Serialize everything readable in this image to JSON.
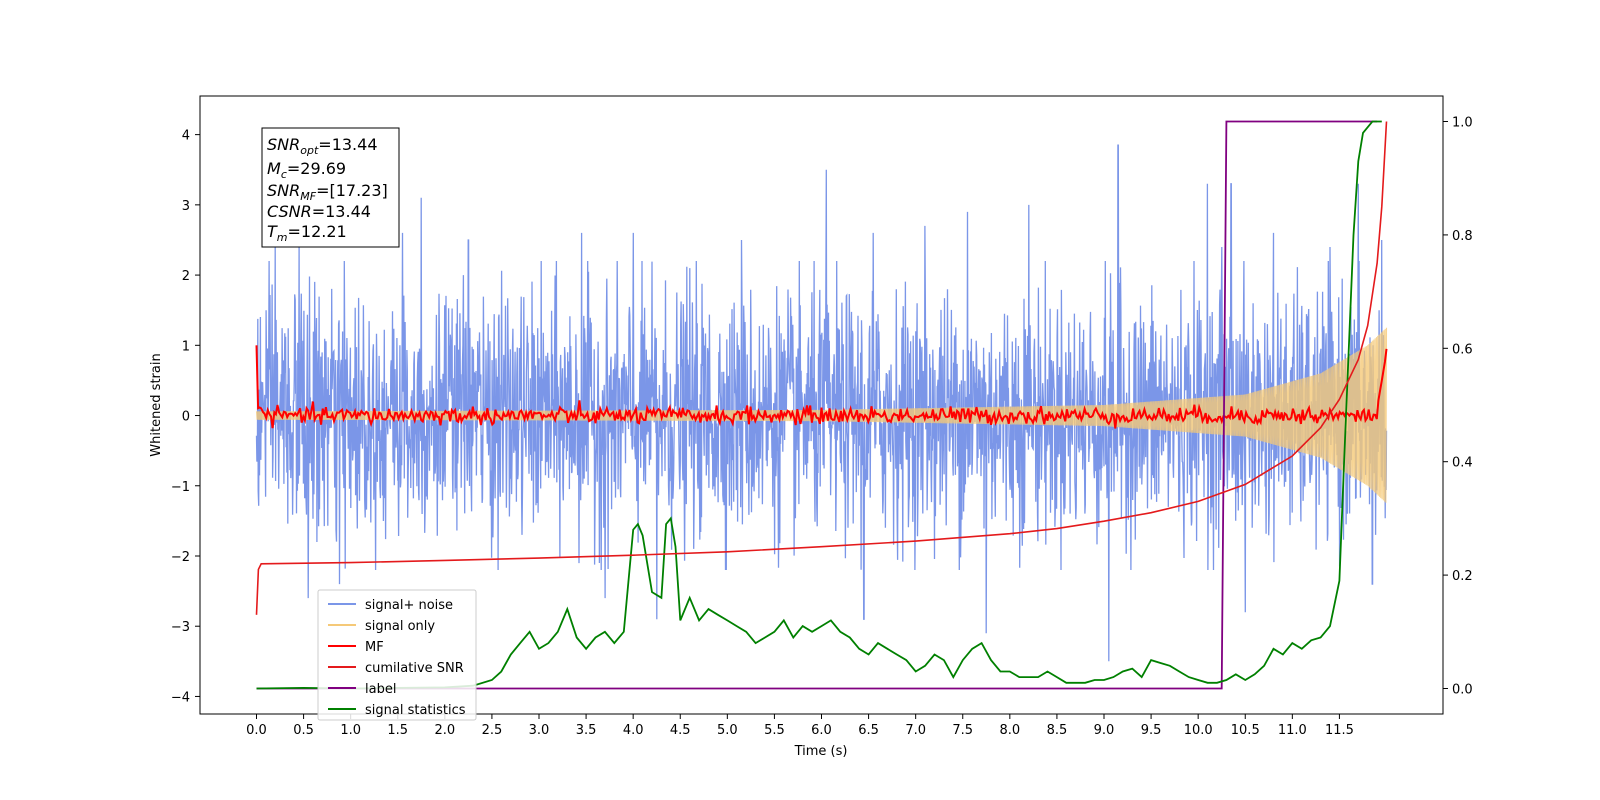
{
  "chart_data": {
    "type": "line",
    "xlabel": "Time (s)",
    "ylabel": "Whitened strain",
    "xlim": [
      -0.6,
      12.6
    ],
    "ylim": [
      -4.25,
      4.55
    ],
    "y2lim": [
      -0.045,
      1.045
    ],
    "xticks": [
      0.0,
      0.5,
      1.0,
      1.5,
      2.0,
      2.5,
      3.0,
      3.5,
      4.0,
      4.5,
      5.0,
      5.5,
      6.0,
      6.5,
      7.0,
      7.5,
      8.0,
      8.5,
      9.0,
      9.5,
      10.0,
      10.5,
      11.0,
      11.5
    ],
    "xtick_labels": [
      "0.0",
      "0.5",
      "1.0",
      "1.5",
      "2.0",
      "2.5",
      "3.0",
      "3.5",
      "4.0",
      "4.5",
      "5.0",
      "5.5",
      "6.0",
      "6.5",
      "7.0",
      "7.5",
      "8.0",
      "8.5",
      "9.0",
      "9.5",
      "10.0",
      "10.5",
      "11.0",
      "11.5"
    ],
    "yticks": [
      -4,
      -3,
      -2,
      -1,
      0,
      1,
      2,
      3,
      4
    ],
    "ytick_labels": [
      "−4",
      "−3",
      "−2",
      "−1",
      "0",
      "1",
      "2",
      "3",
      "4"
    ],
    "y2ticks": [
      0.0,
      0.2,
      0.4,
      0.6,
      0.8,
      1.0
    ],
    "y2tick_labels": [
      "0.0",
      "0.2",
      "0.4",
      "0.6",
      "0.8",
      "1.0"
    ],
    "grid": false,
    "legend_position": "lower-left",
    "annotation": {
      "snr_opt": "=13.44",
      "mc": "=29.69",
      "snr_mf": "=[17.23]",
      "csnr": "=13.44",
      "tm": "=12.21"
    },
    "series": [
      {
        "name": "signal+ noise",
        "axis": "left",
        "color": "#7b96e8",
        "t_start": 0.0,
        "t_end": 12.0,
        "noise_sigma": 0.85,
        "spikes": [
          {
            "x": 0.1,
            "y": 1.5
          },
          {
            "x": 0.2,
            "y": 2.4
          },
          {
            "x": 0.45,
            "y": 2.5
          },
          {
            "x": 0.55,
            "y": -2.6
          },
          {
            "x": 0.75,
            "y": 2.6
          },
          {
            "x": 0.88,
            "y": -2.4
          },
          {
            "x": 1.05,
            "y": 2.9
          },
          {
            "x": 1.55,
            "y": 2.6
          },
          {
            "x": 1.75,
            "y": 3.1
          },
          {
            "x": 1.95,
            "y": -2.3
          },
          {
            "x": 2.25,
            "y": 2.5
          },
          {
            "x": 3.45,
            "y": 2.6
          },
          {
            "x": 3.7,
            "y": -2.6
          },
          {
            "x": 4.0,
            "y": 2.6
          },
          {
            "x": 4.25,
            "y": -2.9
          },
          {
            "x": 4.6,
            "y": 2.1
          },
          {
            "x": 5.15,
            "y": 2.5
          },
          {
            "x": 6.05,
            "y": 3.5
          },
          {
            "x": 6.45,
            "y": -2.9
          },
          {
            "x": 6.55,
            "y": 2.6
          },
          {
            "x": 7.1,
            "y": 2.7
          },
          {
            "x": 7.55,
            "y": 2.9
          },
          {
            "x": 7.75,
            "y": -3.1
          },
          {
            "x": 8.2,
            "y": 3.0
          },
          {
            "x": 9.05,
            "y": -3.5
          },
          {
            "x": 9.15,
            "y": 3.85
          },
          {
            "x": 10.1,
            "y": 3.3
          },
          {
            "x": 10.25,
            "y": 2.4
          },
          {
            "x": 10.35,
            "y": 3.3
          },
          {
            "x": 10.5,
            "y": -2.8
          },
          {
            "x": 10.8,
            "y": 2.6
          },
          {
            "x": 11.4,
            "y": 2.4
          },
          {
            "x": 11.7,
            "y": 3.3
          },
          {
            "x": 11.85,
            "y": -2.4
          },
          {
            "x": 11.95,
            "y": 2.5
          }
        ]
      },
      {
        "name": "signal only",
        "axis": "left",
        "color": "#f5c978",
        "t_start": 0.0,
        "t_end": 12.0,
        "amplitude": [
          [
            0.0,
            0.06
          ],
          [
            6.0,
            0.08
          ],
          [
            9.0,
            0.15
          ],
          [
            10.5,
            0.3
          ],
          [
            11.3,
            0.6
          ],
          [
            11.8,
            1.0
          ],
          [
            12.0,
            1.25
          ]
        ]
      },
      {
        "name": "MF",
        "axis": "left",
        "color": "#ff0000",
        "t_start": 0.0,
        "t_end": 12.0,
        "start_value": 1.0,
        "end_value": 0.95,
        "base": 0.0,
        "wiggle": 0.06
      },
      {
        "name": "cumilative SNR",
        "axis": "right",
        "color": "#e41a1c",
        "x": [
          0.0,
          0.02,
          0.05,
          1.0,
          2.0,
          3.0,
          4.0,
          5.0,
          6.0,
          7.0,
          8.0,
          8.5,
          9.0,
          9.5,
          10.0,
          10.5,
          11.0,
          11.3,
          11.5,
          11.7,
          11.8,
          11.9,
          11.95,
          12.0
        ],
        "y": [
          0.13,
          0.21,
          0.22,
          0.222,
          0.226,
          0.23,
          0.235,
          0.241,
          0.25,
          0.26,
          0.273,
          0.282,
          0.295,
          0.31,
          0.33,
          0.36,
          0.41,
          0.46,
          0.51,
          0.58,
          0.64,
          0.75,
          0.85,
          1.0
        ]
      },
      {
        "name": "label",
        "axis": "right",
        "color": "#800080",
        "x": [
          0.0,
          10.25,
          10.3,
          11.9
        ],
        "y": [
          0.0,
          0.0,
          1.0,
          1.0
        ]
      },
      {
        "name": "signal statistics",
        "axis": "right",
        "color": "#008000",
        "x": [
          0.0,
          0.5,
          1.0,
          1.5,
          2.0,
          2.3,
          2.5,
          2.6,
          2.7,
          2.8,
          2.9,
          3.0,
          3.1,
          3.2,
          3.3,
          3.4,
          3.5,
          3.6,
          3.7,
          3.8,
          3.9,
          4.0,
          4.05,
          4.1,
          4.2,
          4.3,
          4.35,
          4.4,
          4.45,
          4.5,
          4.6,
          4.7,
          4.8,
          4.9,
          5.0,
          5.1,
          5.2,
          5.3,
          5.4,
          5.5,
          5.6,
          5.7,
          5.8,
          5.9,
          6.0,
          6.1,
          6.2,
          6.3,
          6.4,
          6.5,
          6.6,
          6.7,
          6.8,
          6.9,
          7.0,
          7.1,
          7.2,
          7.3,
          7.4,
          7.5,
          7.6,
          7.7,
          7.8,
          7.9,
          8.0,
          8.1,
          8.2,
          8.3,
          8.4,
          8.5,
          8.6,
          8.7,
          8.8,
          8.9,
          9.0,
          9.1,
          9.2,
          9.3,
          9.4,
          9.5,
          9.6,
          9.7,
          9.8,
          9.9,
          10.0,
          10.1,
          10.2,
          10.3,
          10.4,
          10.5,
          10.6,
          10.7,
          10.8,
          10.9,
          11.0,
          11.1,
          11.2,
          11.3,
          11.4,
          11.5,
          11.55,
          11.6,
          11.65,
          11.7,
          11.75,
          11.8,
          11.85,
          11.9,
          11.95
        ],
        "y": [
          0.0,
          0.001,
          0.0,
          0.001,
          0.002,
          0.005,
          0.015,
          0.03,
          0.06,
          0.08,
          0.1,
          0.07,
          0.08,
          0.1,
          0.14,
          0.09,
          0.07,
          0.09,
          0.1,
          0.08,
          0.1,
          0.28,
          0.29,
          0.27,
          0.17,
          0.16,
          0.29,
          0.3,
          0.25,
          0.12,
          0.16,
          0.12,
          0.14,
          0.13,
          0.12,
          0.11,
          0.1,
          0.08,
          0.09,
          0.1,
          0.12,
          0.09,
          0.11,
          0.1,
          0.11,
          0.12,
          0.1,
          0.09,
          0.07,
          0.06,
          0.08,
          0.07,
          0.06,
          0.05,
          0.03,
          0.04,
          0.06,
          0.05,
          0.02,
          0.05,
          0.07,
          0.08,
          0.05,
          0.03,
          0.03,
          0.02,
          0.02,
          0.02,
          0.03,
          0.02,
          0.01,
          0.01,
          0.01,
          0.015,
          0.015,
          0.02,
          0.03,
          0.035,
          0.02,
          0.05,
          0.045,
          0.04,
          0.03,
          0.02,
          0.015,
          0.01,
          0.01,
          0.015,
          0.025,
          0.015,
          0.025,
          0.04,
          0.07,
          0.06,
          0.08,
          0.07,
          0.085,
          0.09,
          0.11,
          0.19,
          0.4,
          0.6,
          0.8,
          0.93,
          0.98,
          0.99,
          1.0,
          1.0,
          1.0
        ]
      }
    ]
  }
}
